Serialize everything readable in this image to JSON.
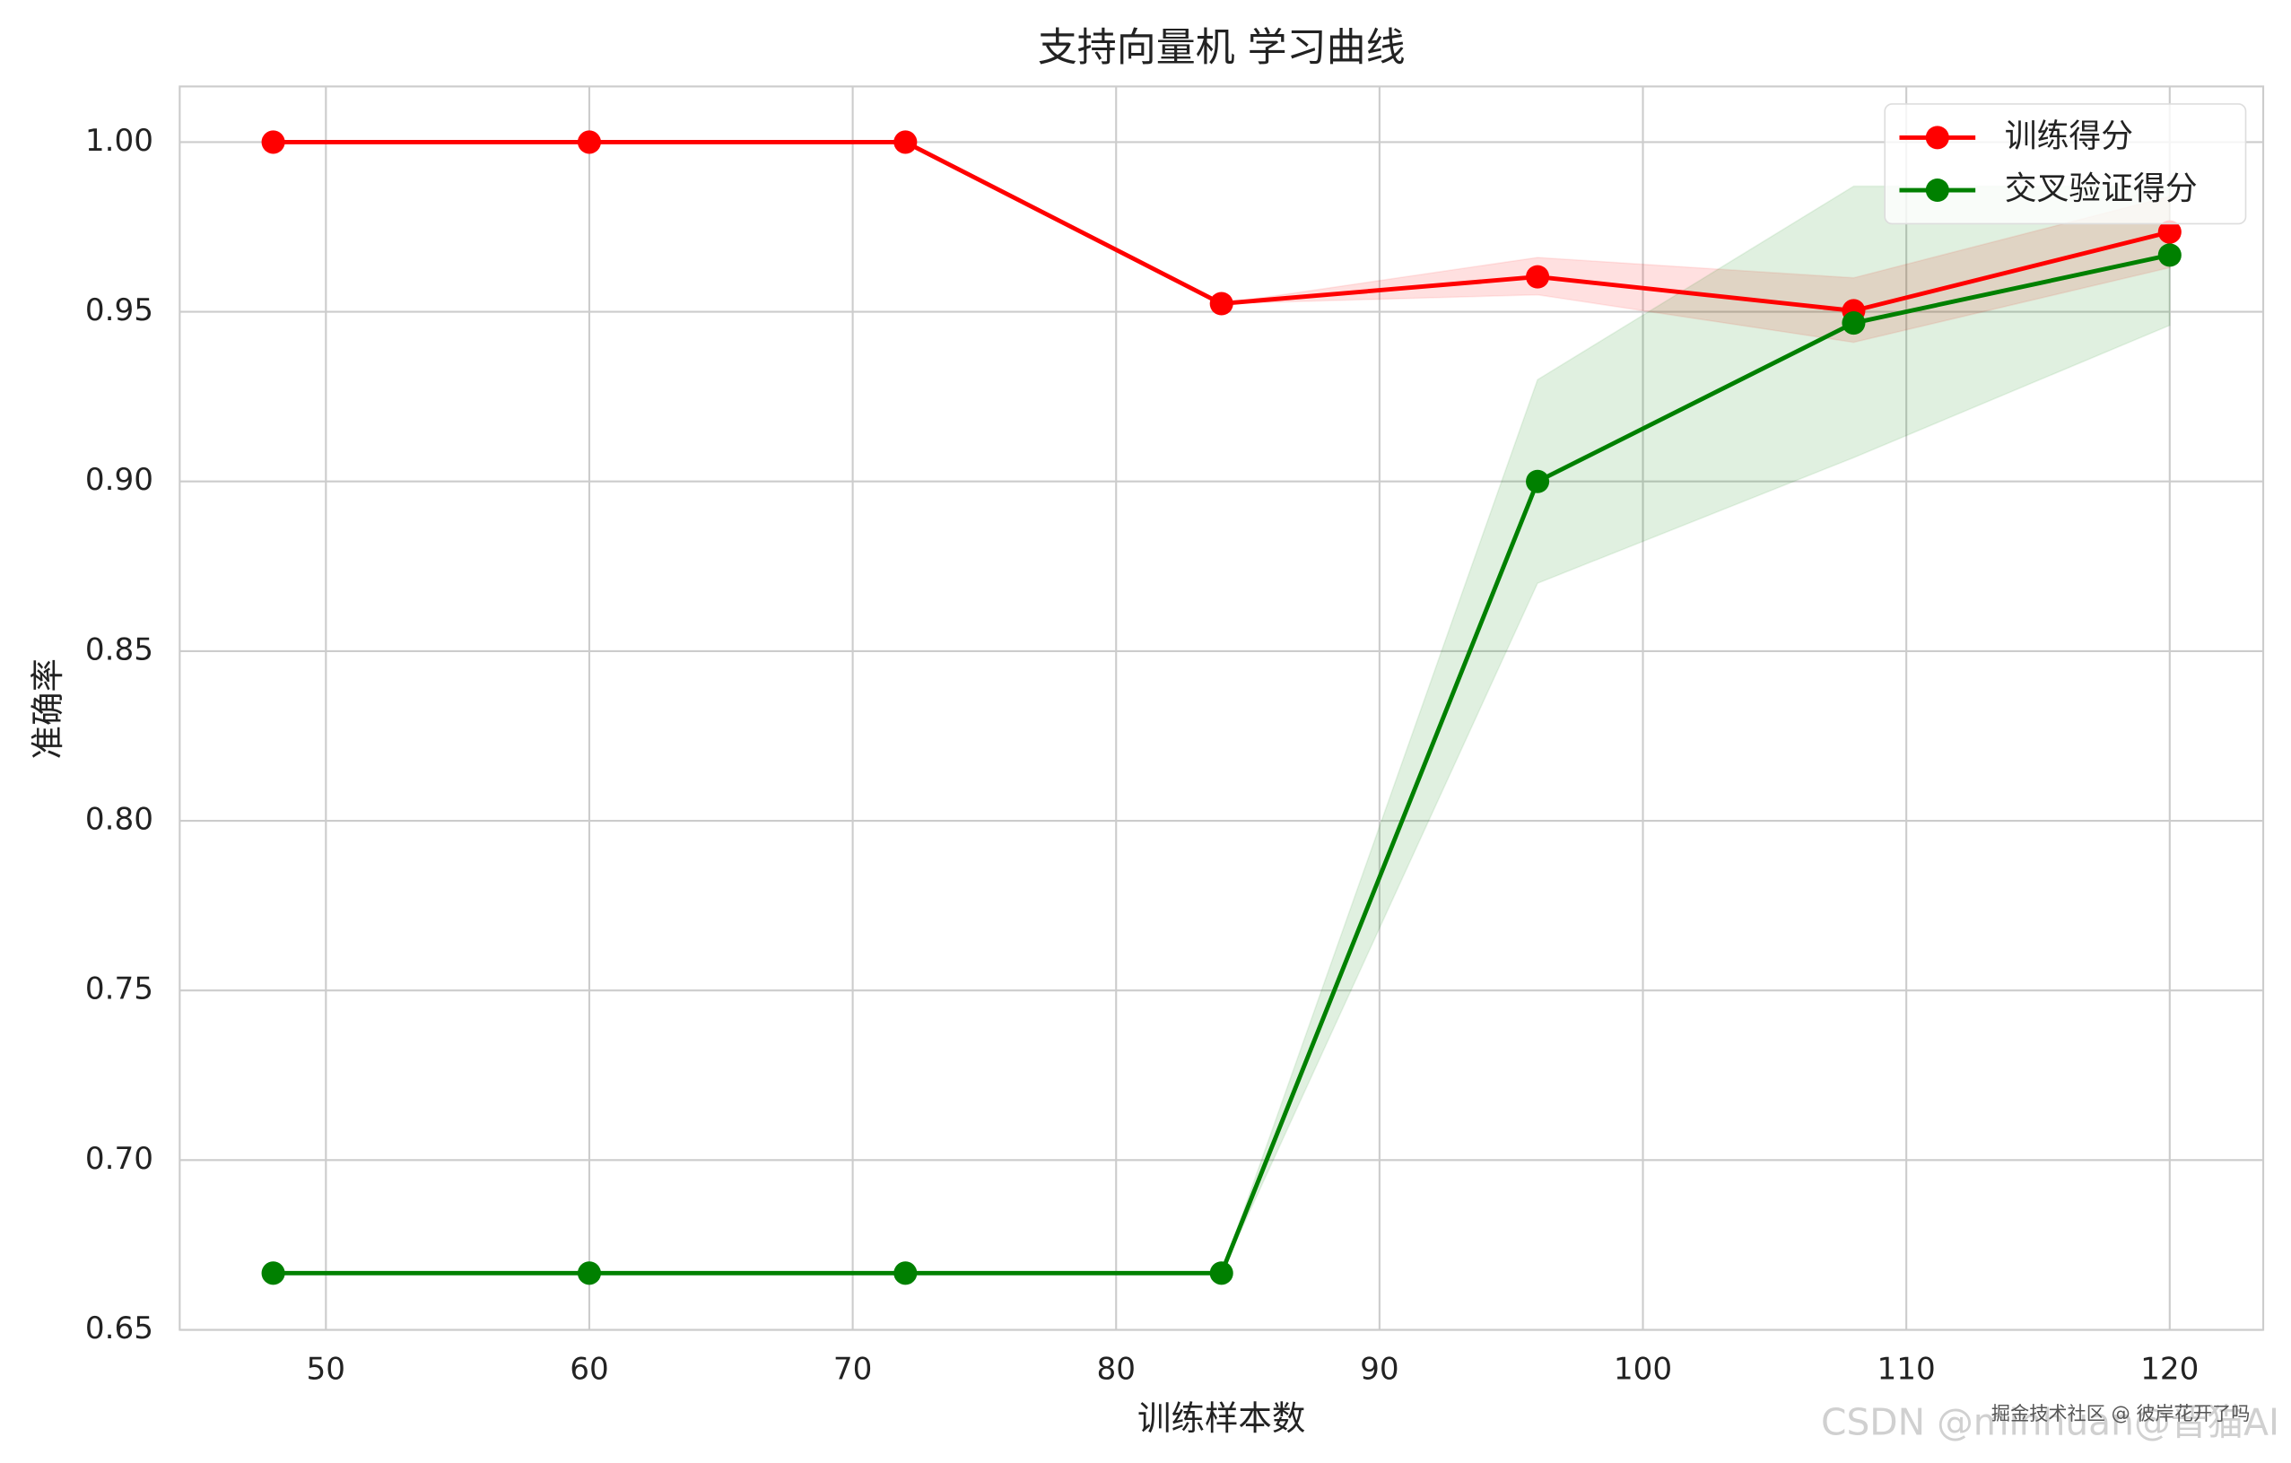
{
  "chart_data": {
    "type": "line",
    "title": "支持向量机 学习曲线",
    "x_label": "训练样本数",
    "y_label": "准确率",
    "x": [
      48,
      60,
      72,
      84,
      96,
      108,
      120
    ],
    "series": [
      {
        "name": "训练得分",
        "color": "#ff0000",
        "values": [
          1.0,
          1.0,
          1.0,
          0.9524,
          0.9603,
          0.9503,
          0.9735
        ],
        "lower": [
          1.0,
          1.0,
          1.0,
          0.9524,
          0.955,
          0.941,
          0.963
        ],
        "upper": [
          1.0,
          1.0,
          1.0,
          0.9524,
          0.966,
          0.96,
          0.984
        ]
      },
      {
        "name": "交叉验证得分",
        "color": "#008000",
        "values": [
          0.6667,
          0.6667,
          0.6667,
          0.6667,
          0.9,
          0.9467,
          0.9667
        ],
        "lower": [
          0.6667,
          0.6667,
          0.6667,
          0.6667,
          0.87,
          0.907,
          0.946
        ],
        "upper": [
          0.6667,
          0.6667,
          0.6667,
          0.6667,
          0.93,
          0.987,
          0.987
        ]
      }
    ],
    "xlim": [
      44.45,
      123.55
    ],
    "ylim": [
      0.65,
      1.0164
    ],
    "xticks": [
      50,
      60,
      70,
      80,
      90,
      100,
      110,
      120
    ],
    "yticks": [
      {
        "value": 0.65,
        "label": "0.65"
      },
      {
        "value": 0.7,
        "label": "0.70"
      },
      0.75,
      {
        "value": 0.8,
        "label": "0.80"
      },
      0.85,
      {
        "value": 0.9,
        "label": "0.90"
      },
      0.95,
      {
        "value": 1.0,
        "label": "1.00"
      }
    ],
    "grid": true,
    "legend": "upper right",
    "watermark": [
      "掘金技术社区 @ 彼岸花开了吗",
      "CSDN @minhuan@晋猫AI"
    ]
  }
}
